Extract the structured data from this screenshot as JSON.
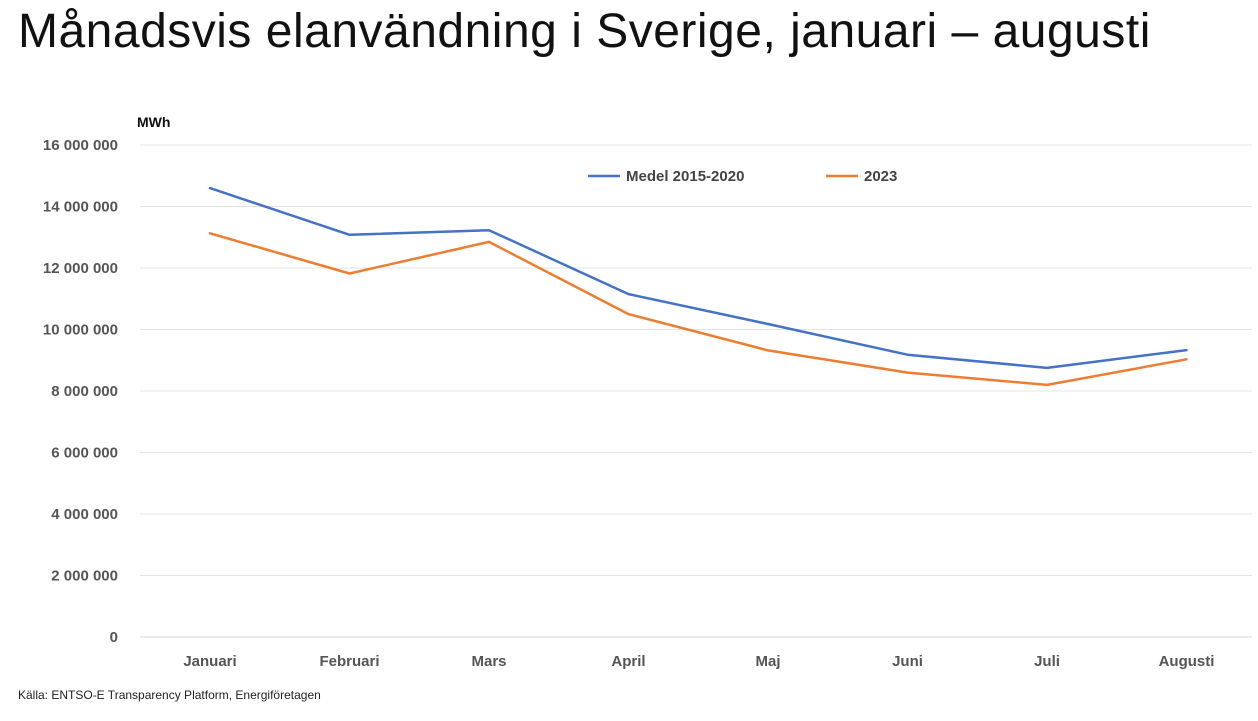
{
  "title": "Månadsvis elanvändning i Sverige, januari – augusti",
  "source": "Källa: ENTSO-E Transparency Platform, Energiföretagen",
  "colors": {
    "series1": "#4472C4",
    "series2": "#ED7D31",
    "grid": "#e4e4e4"
  },
  "chart_data": {
    "type": "line",
    "unit_label": "MWh",
    "categories": [
      "Januari",
      "Februari",
      "Mars",
      "April",
      "Maj",
      "Juni",
      "Juli",
      "Augusti"
    ],
    "series": [
      {
        "name": "Medel 2015-2020",
        "values": [
          14600000,
          13080000,
          13230000,
          11150000,
          10180000,
          9180000,
          8750000,
          9330000
        ]
      },
      {
        "name": "2023",
        "values": [
          13130000,
          11820000,
          12850000,
          10500000,
          9320000,
          8600000,
          8200000,
          9030000
        ]
      }
    ],
    "ylim": [
      0,
      16000000
    ],
    "yticks": [
      0,
      2000000,
      4000000,
      6000000,
      8000000,
      10000000,
      12000000,
      14000000,
      16000000
    ],
    "ytick_labels": [
      "0",
      "2 000 000",
      "4 000 000",
      "6 000 000",
      "8 000 000",
      "10 000 000",
      "12 000 000",
      "14 000 000",
      "16 000 000"
    ],
    "grid": true,
    "legend_position": "top-center"
  }
}
